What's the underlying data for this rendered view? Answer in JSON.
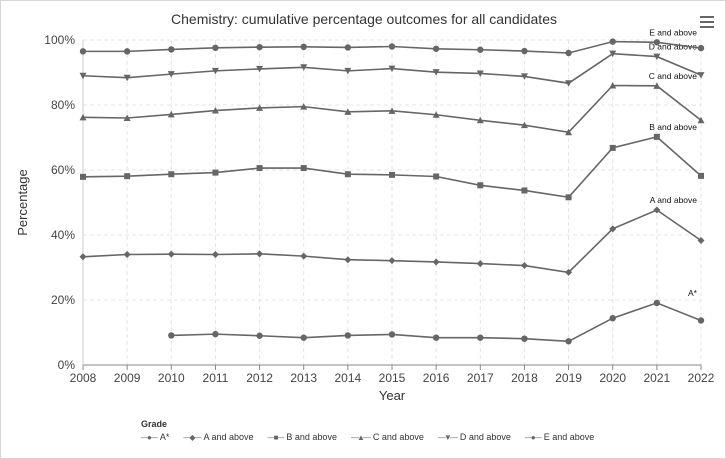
{
  "chart_data": {
    "type": "line",
    "title": "Chemistry: cumulative percentage outcomes for all candidates",
    "xlabel": "Year",
    "ylabel": "Percentage",
    "ylim": [
      0,
      100
    ],
    "y_ticks": [
      "0%",
      "20%",
      "40%",
      "60%",
      "80%",
      "100%"
    ],
    "x": [
      "2008",
      "2009",
      "2010",
      "2011",
      "2012",
      "2013",
      "2014",
      "2015",
      "2016",
      "2017",
      "2018",
      "2019",
      "2020",
      "2021",
      "2022"
    ],
    "grid": true,
    "legend_title": "Grade",
    "legend_position": "bottom",
    "line_color": "#666666",
    "series": [
      {
        "name": "A*",
        "marker": "circle",
        "end_label": "A*",
        "values": [
          null,
          null,
          9.1,
          9.5,
          9.0,
          8.4,
          9.1,
          9.4,
          8.4,
          8.4,
          8.1,
          7.3,
          14.4,
          19.1,
          13.7
        ]
      },
      {
        "name": "A and above",
        "marker": "diamond",
        "end_label": "A and above",
        "values": [
          33.3,
          34.0,
          34.1,
          34.0,
          34.2,
          33.5,
          32.4,
          32.1,
          31.7,
          31.2,
          30.6,
          28.5,
          41.9,
          47.7,
          38.3
        ]
      },
      {
        "name": "B and above",
        "marker": "square",
        "end_label": "B and above",
        "values": [
          57.9,
          58.1,
          58.7,
          59.2,
          60.6,
          60.6,
          58.7,
          58.5,
          58.0,
          55.3,
          53.7,
          51.6,
          66.8,
          70.2,
          58.2
        ]
      },
      {
        "name": "C and above",
        "marker": "triangle",
        "end_label": "C and above",
        "values": [
          76.2,
          76.0,
          77.1,
          78.3,
          79.1,
          79.5,
          77.9,
          78.2,
          77.0,
          75.3,
          73.8,
          71.6,
          86.0,
          85.9,
          75.3
        ]
      },
      {
        "name": "D and above",
        "marker": "triangle-down",
        "end_label": "D and above",
        "values": [
          89.0,
          88.4,
          89.5,
          90.5,
          91.1,
          91.6,
          90.5,
          91.2,
          90.1,
          89.7,
          88.8,
          86.7,
          95.8,
          94.9,
          89.2
        ]
      },
      {
        "name": "E and above",
        "marker": "circle",
        "end_label": "E and above",
        "values": [
          96.5,
          96.5,
          97.1,
          97.6,
          97.8,
          97.9,
          97.7,
          98.0,
          97.3,
          97.0,
          96.6,
          96.0,
          99.5,
          99.3,
          97.5
        ]
      }
    ]
  }
}
